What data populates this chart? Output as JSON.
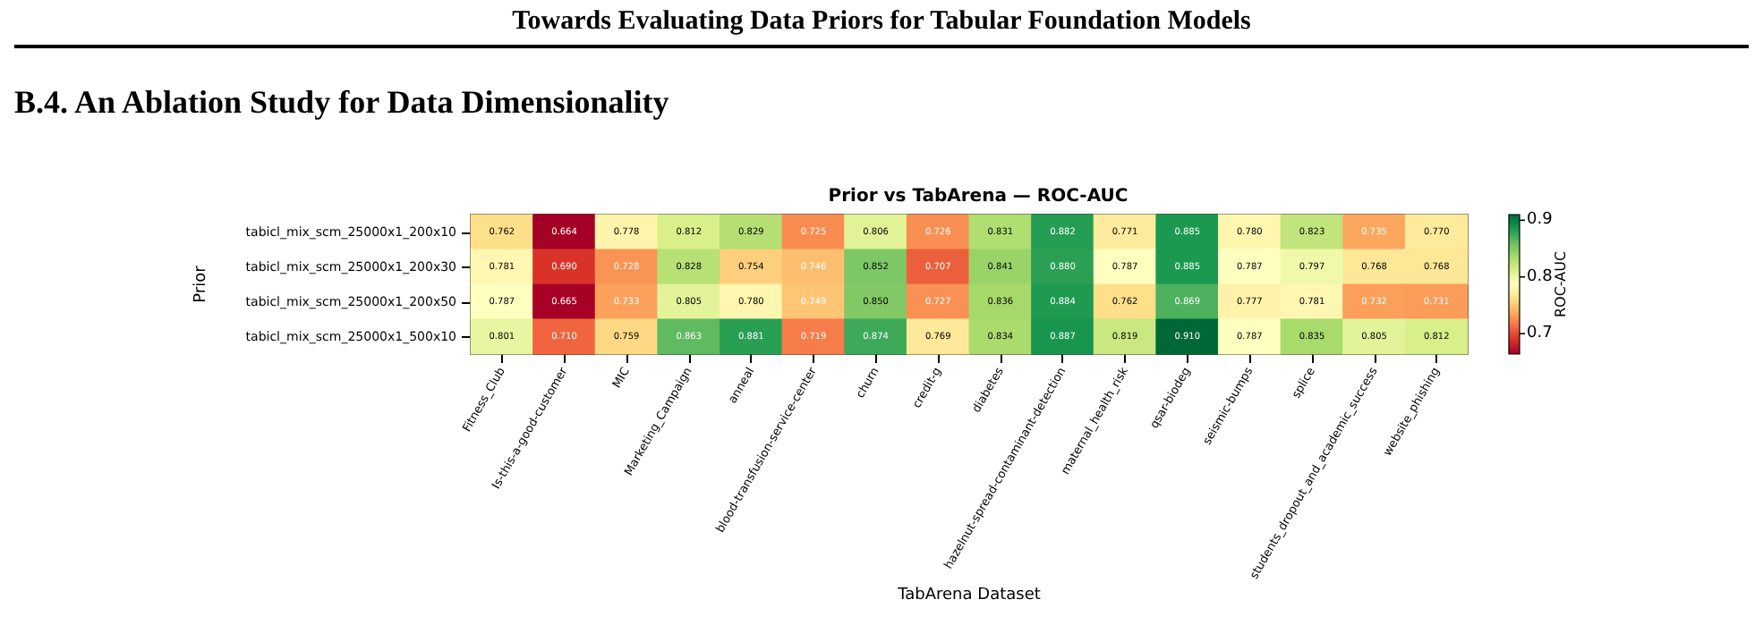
{
  "chart_data": {
    "type": "heatmap",
    "title": "Prior vs TabArena — ROC-AUC",
    "xlabel": "TabArena Dataset",
    "ylabel": "Prior",
    "clabel": "ROC-AUC",
    "annotations": [
      "Towards Evaluating Data Priors for Tabular Foundation Models",
      "B.4. An Ablation Study for Data Dimensionality"
    ],
    "categories": [
      "Fitness_Club",
      "Is-this-a-good-customer",
      "MIC",
      "Marketing_Campaign",
      "anneal",
      "blood-transfusion-service-center",
      "churn",
      "credit-g",
      "diabetes",
      "hazelnut-spread-contaminant-detection",
      "maternal_health_risk",
      "qsar-biodeg",
      "seismic-bumps",
      "splice",
      "students_dropout_and_academic_success",
      "website_phishing"
    ],
    "y_categories": [
      "tabicl_mix_scm_25000x1_200x10",
      "tabicl_mix_scm_25000x1_200x30",
      "tabicl_mix_scm_25000x1_200x50",
      "tabicl_mix_scm_25000x1_500x10"
    ],
    "cells": [
      [
        0.762,
        0.664,
        0.778,
        0.812,
        0.829,
        0.725,
        0.806,
        0.726,
        0.831,
        0.882,
        0.771,
        0.885,
        0.78,
        0.823,
        0.735,
        0.77
      ],
      [
        0.781,
        0.69,
        0.728,
        0.828,
        0.754,
        0.746,
        0.852,
        0.707,
        0.841,
        0.88,
        0.787,
        0.885,
        0.787,
        0.797,
        0.768,
        0.768
      ],
      [
        0.787,
        0.665,
        0.733,
        0.805,
        0.78,
        0.749,
        0.85,
        0.727,
        0.836,
        0.884,
        0.762,
        0.869,
        0.777,
        0.781,
        0.732,
        0.731
      ],
      [
        0.801,
        0.71,
        0.759,
        0.863,
        0.881,
        0.719,
        0.874,
        0.769,
        0.834,
        0.887,
        0.819,
        0.91,
        0.787,
        0.835,
        0.805,
        0.812
      ]
    ],
    "cell_labels": [
      [
        "0.762",
        "0.664",
        "0.778",
        "0.812",
        "0.829",
        "0.725",
        "0.806",
        "0.726",
        "0.831",
        "0.882",
        "0.771",
        "0.885",
        "0.780",
        "0.823",
        "0.735",
        "0.770"
      ],
      [
        "0.781",
        "0.690",
        "0.728",
        "0.828",
        "0.754",
        "0.746",
        "0.852",
        "0.707",
        "0.841",
        "0.880",
        "0.787",
        "0.885",
        "0.787",
        "0.797",
        "0.768",
        "0.768"
      ],
      [
        "0.787",
        "0.665",
        "0.733",
        "0.805",
        "0.780",
        "0.749",
        "0.850",
        "0.727",
        "0.836",
        "0.884",
        "0.762",
        "0.869",
        "0.777",
        "0.781",
        "0.732",
        "0.731"
      ],
      [
        "0.801",
        "0.710",
        "0.759",
        "0.863",
        "0.881",
        "0.719",
        "0.874",
        "0.769",
        "0.834",
        "0.887",
        "0.819",
        "0.910",
        "0.787",
        "0.835",
        "0.805",
        "0.812"
      ]
    ],
    "clim": [
      0.664,
      0.91
    ],
    "cticks": [
      0.7,
      0.8,
      0.9
    ],
    "data_labels": true
  }
}
